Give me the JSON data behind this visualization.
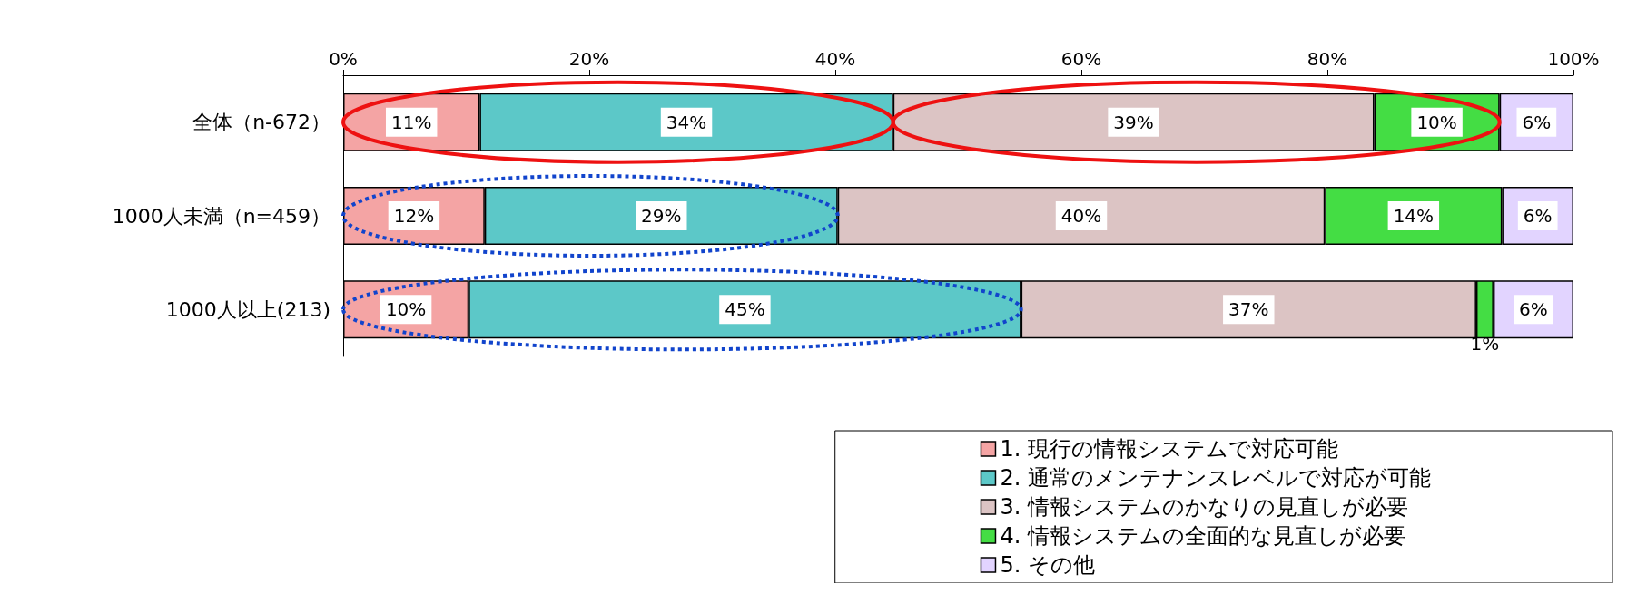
{
  "chart_data": {
    "type": "bar",
    "orientation": "horizontal",
    "stacked": true,
    "categories": [
      "全体（n-672）",
      "1000人未満（n=459）",
      "1000人以上(213)"
    ],
    "series": [
      {
        "name": "1. 現行の情報システムで対応可能",
        "color": "#f4a4a4",
        "values": [
          11.1,
          11.5,
          10.2
        ],
        "value_labels": [
          "11%",
          "12%",
          "10%"
        ]
      },
      {
        "name": "2. 通常のメンテナンスレベルで対応が可能",
        "color": "#5cc8c8",
        "values": [
          33.6,
          28.7,
          44.9
        ],
        "value_labels": [
          "34%",
          "29%",
          "45%"
        ]
      },
      {
        "name": "3. 情報システムのかなりの見直しが必要",
        "color": "#dcc4c4",
        "values": [
          39.1,
          39.6,
          37.0
        ],
        "value_labels": [
          "39%",
          "40%",
          "37%"
        ]
      },
      {
        "name": "4. 情報システムの全面的な見直しが必要",
        "color": "#44dd44",
        "values": [
          10.2,
          14.4,
          1.4
        ],
        "value_labels": [
          "10%",
          "14%",
          "1%"
        ]
      },
      {
        "name": "5. その他",
        "color": "#e2d4ff",
        "values": [
          6.0,
          5.8,
          6.5
        ],
        "value_labels": [
          "6%",
          "6%",
          "6%"
        ]
      }
    ],
    "xlim": [
      0,
      100
    ],
    "xticks": [
      {
        "value": 0,
        "label": "0%"
      },
      {
        "value": 20,
        "label": "20%"
      },
      {
        "value": 40,
        "label": "40%"
      },
      {
        "value": 60,
        "label": "60%"
      },
      {
        "value": 80,
        "label": "80%"
      },
      {
        "value": 100,
        "label": "100%"
      }
    ],
    "grid": false,
    "legend": "bottom right"
  }
}
